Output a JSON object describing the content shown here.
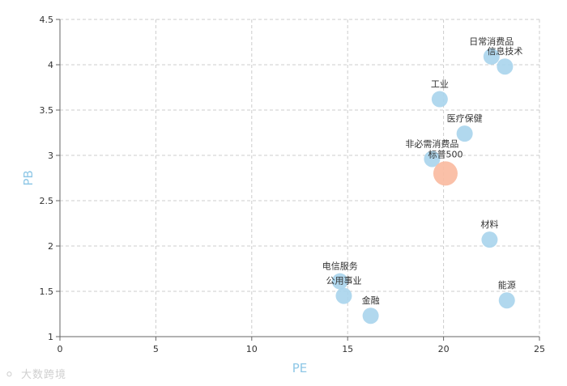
{
  "chart_data": {
    "type": "scatter",
    "xlabel": "PE",
    "ylabel": "PB",
    "xlim": [
      0,
      25
    ],
    "ylim": [
      1,
      4.5
    ],
    "x_ticks": [
      0,
      5,
      10,
      15,
      20,
      25
    ],
    "y_ticks": [
      1,
      1.5,
      2,
      2.5,
      3,
      3.5,
      4,
      4.5
    ],
    "grid": true,
    "colors": {
      "sector": "#a8d4ec",
      "benchmark": "#f9b99f",
      "axis_title": "#8ec7e6"
    },
    "points": [
      {
        "label": "日常消费品",
        "x": 22.5,
        "y": 4.09,
        "size": "normal"
      },
      {
        "label": "信息技术",
        "x": 23.2,
        "y": 3.98,
        "size": "normal"
      },
      {
        "label": "工业",
        "x": 19.8,
        "y": 3.62,
        "size": "normal"
      },
      {
        "label": "医疗保健",
        "x": 21.1,
        "y": 3.24,
        "size": "normal"
      },
      {
        "label": "非必需消费品",
        "x": 19.4,
        "y": 2.96,
        "size": "normal"
      },
      {
        "label": "标普500",
        "x": 20.1,
        "y": 2.8,
        "size": "large"
      },
      {
        "label": "材料",
        "x": 22.4,
        "y": 2.07,
        "size": "normal"
      },
      {
        "label": "电信服务",
        "x": 14.6,
        "y": 1.61,
        "size": "normal"
      },
      {
        "label": "公用事业",
        "x": 14.8,
        "y": 1.45,
        "size": "normal"
      },
      {
        "label": "金融",
        "x": 16.2,
        "y": 1.23,
        "size": "normal"
      },
      {
        "label": "能源",
        "x": 23.3,
        "y": 1.4,
        "size": "normal"
      }
    ]
  },
  "watermark": {
    "icon": "",
    "text": "大数跨境"
  }
}
